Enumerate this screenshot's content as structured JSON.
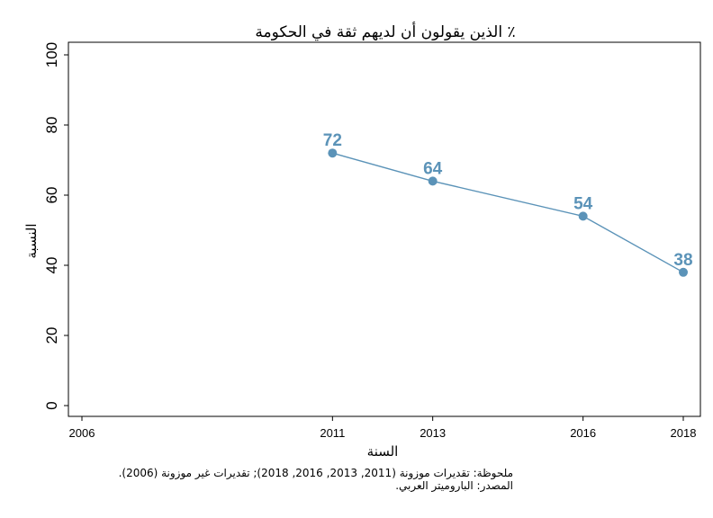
{
  "chart_data": {
    "type": "line",
    "title": "٪ الذين يقولون أن لديهم ثقة في الحكومة",
    "xlabel": "السنة",
    "ylabel": "النسبة",
    "x": [
      2011,
      2013,
      2016,
      2018
    ],
    "xticks": [
      "2006",
      "2011",
      "2013",
      "2016",
      "2018"
    ],
    "xlim": [
      2006,
      2018
    ],
    "yticks": [
      "0",
      "20",
      "40",
      "60",
      "80",
      "100"
    ],
    "ylim": [
      0,
      100
    ],
    "series": [
      {
        "values": [
          72,
          64,
          54,
          38
        ],
        "labels": [
          "72",
          "64",
          "54",
          "38"
        ]
      }
    ],
    "grid": false,
    "colors": {
      "series": "#5b93b8",
      "frame": "#000000"
    }
  },
  "notes": {
    "note": "ملحوظة: تقديرات موزونة (2011, 2013, 2016, 2018); تقديرات غير موزونة (2006).",
    "source": "المصدر: الباروميتر العربي."
  }
}
